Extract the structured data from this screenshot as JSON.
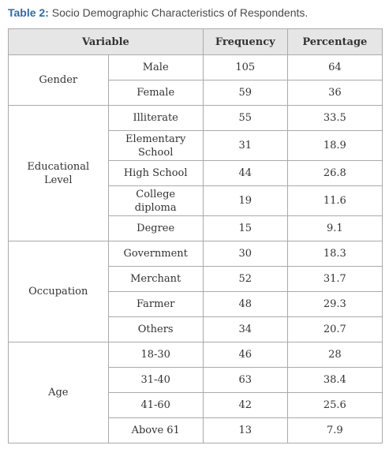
{
  "caption": {
    "label": "Table 2:",
    "text": " Socio Demographic Characteristics of Respondents."
  },
  "table": {
    "headers": {
      "variable": "Variable",
      "frequency": "Frequency",
      "percentage": "Percentage"
    },
    "groups": [
      {
        "variable": "Gender",
        "rows": [
          {
            "category": "Male",
            "frequency": "105",
            "percentage": "64"
          },
          {
            "category": "Female",
            "frequency": "59",
            "percentage": "36"
          }
        ]
      },
      {
        "variable": "Educational\nLevel",
        "rows": [
          {
            "category": "Illiterate",
            "frequency": "55",
            "percentage": "33.5"
          },
          {
            "category": "Elementary\nSchool",
            "frequency": "31",
            "percentage": "18.9"
          },
          {
            "category": "High School",
            "frequency": "44",
            "percentage": "26.8"
          },
          {
            "category": "College\ndiploma",
            "frequency": "19",
            "percentage": "11.6"
          },
          {
            "category": "Degree",
            "frequency": "15",
            "percentage": "9.1"
          }
        ]
      },
      {
        "variable": "Occupation",
        "rows": [
          {
            "category": "Government",
            "frequency": "30",
            "percentage": "18.3"
          },
          {
            "category": "Merchant",
            "frequency": "52",
            "percentage": "31.7"
          },
          {
            "category": "Farmer",
            "frequency": "48",
            "percentage": "29.3"
          },
          {
            "category": "Others",
            "frequency": "34",
            "percentage": "20.7"
          }
        ]
      },
      {
        "variable": "Age",
        "rows": [
          {
            "category": "18-30",
            "frequency": "46",
            "percentage": "28"
          },
          {
            "category": "31-40",
            "frequency": "63",
            "percentage": "38.4"
          },
          {
            "category": "41-60",
            "frequency": "42",
            "percentage": "25.6"
          },
          {
            "category": "Above 61",
            "frequency": "13",
            "percentage": "7.9"
          }
        ]
      }
    ]
  }
}
